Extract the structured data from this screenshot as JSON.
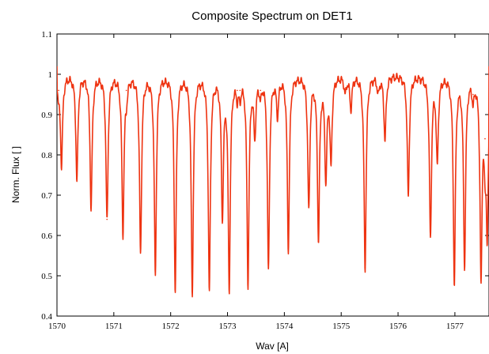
{
  "chart_data": {
    "type": "line",
    "title": "Composite Spectrum on DET1",
    "xlabel": "Wav [A]",
    "ylabel": "Norm. Flux [ ]",
    "xlim": [
      1570.0,
      1577.6
    ],
    "ylim": [
      0.4,
      1.1
    ],
    "xticks": [
      1570,
      1571,
      1572,
      1573,
      1574,
      1575,
      1576,
      1577
    ],
    "yticks": [
      0.4,
      0.5,
      0.6,
      0.7,
      0.8,
      0.9,
      1,
      1.1
    ],
    "grid": false,
    "legend": "none",
    "series": [
      {
        "color": "#ee3311",
        "continuum": 1.0,
        "start_flux": 1.02,
        "end_flux": 1.02,
        "lines": [
          {
            "x": 1570.03,
            "y": 0.96
          },
          {
            "x": 1570.08,
            "y": 0.78
          },
          {
            "x": 1570.35,
            "y": 0.74
          },
          {
            "x": 1570.6,
            "y": 0.67
          },
          {
            "x": 1570.88,
            "y": 0.64
          },
          {
            "x": 1571.16,
            "y": 0.61
          },
          {
            "x": 1571.22,
            "y": 0.96
          },
          {
            "x": 1571.47,
            "y": 0.56
          },
          {
            "x": 1571.73,
            "y": 0.51
          },
          {
            "x": 1572.08,
            "y": 0.47
          },
          {
            "x": 1572.38,
            "y": 0.46
          },
          {
            "x": 1572.68,
            "y": 0.47
          },
          {
            "x": 1572.91,
            "y": 0.66
          },
          {
            "x": 1573.03,
            "y": 0.48
          },
          {
            "x": 1573.17,
            "y": 0.96
          },
          {
            "x": 1573.22,
            "y": 0.96
          },
          {
            "x": 1573.36,
            "y": 0.49
          },
          {
            "x": 1573.48,
            "y": 0.86
          },
          {
            "x": 1573.58,
            "y": 0.96
          },
          {
            "x": 1573.72,
            "y": 0.52
          },
          {
            "x": 1573.88,
            "y": 0.91
          },
          {
            "x": 1574.07,
            "y": 0.57
          },
          {
            "x": 1574.43,
            "y": 0.67
          },
          {
            "x": 1574.6,
            "y": 0.6
          },
          {
            "x": 1574.73,
            "y": 0.75
          },
          {
            "x": 1574.82,
            "y": 0.79
          },
          {
            "x": 1575.07,
            "y": 0.96
          },
          {
            "x": 1575.17,
            "y": 0.92
          },
          {
            "x": 1575.42,
            "y": 0.52
          },
          {
            "x": 1575.65,
            "y": 0.96
          },
          {
            "x": 1575.77,
            "y": 0.84
          },
          {
            "x": 1576.18,
            "y": 0.7
          },
          {
            "x": 1576.57,
            "y": 0.6
          },
          {
            "x": 1576.69,
            "y": 0.79
          },
          {
            "x": 1576.99,
            "y": 0.49
          },
          {
            "x": 1577.17,
            "y": 0.53
          },
          {
            "x": 1577.32,
            "y": 0.95
          },
          {
            "x": 1577.46,
            "y": 0.51
          },
          {
            "x": 1577.53,
            "y": 0.84
          },
          {
            "x": 1577.57,
            "y": 0.64
          }
        ]
      }
    ]
  }
}
